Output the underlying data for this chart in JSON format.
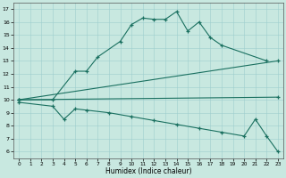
{
  "bg_color": "#c8e8e0",
  "line_color": "#1a7060",
  "xlabel": "Humidex (Indice chaleur)",
  "xlim": [
    -0.5,
    23.5
  ],
  "ylim": [
    5.5,
    17.5
  ],
  "yticks": [
    6,
    7,
    8,
    9,
    10,
    11,
    12,
    13,
    14,
    15,
    16,
    17
  ],
  "xticks": [
    0,
    1,
    2,
    3,
    4,
    5,
    6,
    7,
    8,
    9,
    10,
    11,
    12,
    13,
    14,
    15,
    16,
    17,
    18,
    19,
    20,
    21,
    22,
    23
  ],
  "series": [
    {
      "x": [
        0,
        3,
        5,
        6,
        7,
        9,
        10,
        11,
        12,
        13,
        14,
        15,
        16,
        17,
        18,
        22
      ],
      "y": [
        10,
        10,
        12.2,
        12.2,
        13.3,
        14.5,
        15.8,
        16.3,
        16.2,
        16.2,
        16.8,
        15.3,
        16.0,
        14.8,
        14.2,
        13.0
      ]
    },
    {
      "x": [
        0,
        23
      ],
      "y": [
        10,
        10.2
      ]
    },
    {
      "x": [
        0,
        3,
        4,
        5,
        6,
        8,
        10,
        12,
        14,
        16,
        18,
        20,
        21,
        22,
        23
      ],
      "y": [
        9.8,
        9.5,
        8.5,
        9.3,
        9.2,
        9.0,
        8.7,
        8.4,
        8.1,
        7.8,
        7.5,
        7.2,
        8.5,
        7.2,
        6.0
      ]
    },
    {
      "x": [
        0,
        23
      ],
      "y": [
        10,
        13.0
      ]
    }
  ]
}
